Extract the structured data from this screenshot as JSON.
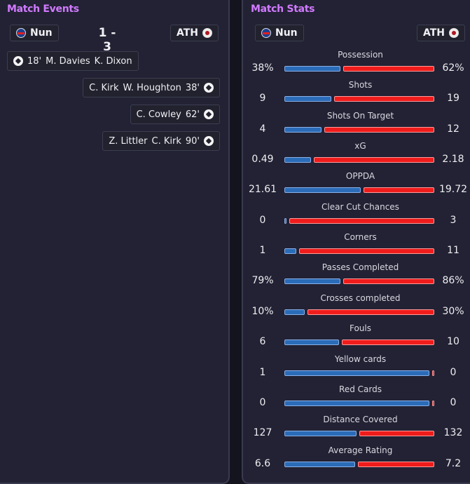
{
  "events_panel": {
    "title": "Match Events",
    "home": {
      "name": "Nun",
      "badge": "nunawading-crest"
    },
    "away": {
      "name": "ATH",
      "badge": "ath-crest"
    },
    "score": "1 - 3",
    "events": [
      {
        "team": "home",
        "minute": "18'",
        "scorer": "M. Davies",
        "assist": "K. Dixon",
        "icon": "ball-icon"
      },
      {
        "team": "away",
        "minute": "38'",
        "scorer": "W. Houghton",
        "assist": "C. Kirk",
        "icon": "ball-icon"
      },
      {
        "team": "away",
        "minute": "62'",
        "scorer": "C. Cowley",
        "assist": "",
        "icon": "ball-icon"
      },
      {
        "team": "away",
        "minute": "90'",
        "scorer": "C. Kirk",
        "assist": "Z. Littler",
        "icon": "ball-icon"
      }
    ]
  },
  "stats_panel": {
    "title": "Match Stats",
    "home": {
      "name": "Nun"
    },
    "away": {
      "name": "ATH"
    },
    "colors": {
      "home": "#2b6cb8",
      "away": "#f01c1c"
    },
    "stats": [
      {
        "label": "Possession",
        "home": "38%",
        "away": "62%",
        "home_share": 0.38
      },
      {
        "label": "Shots",
        "home": "9",
        "away": "19",
        "home_share": 0.32
      },
      {
        "label": "Shots On Target",
        "home": "4",
        "away": "12",
        "home_share": 0.25
      },
      {
        "label": "xG",
        "home": "0.49",
        "away": "2.18",
        "home_share": 0.18
      },
      {
        "label": "OPPDA",
        "home": "21.61",
        "away": "19.72",
        "home_share": 0.52
      },
      {
        "label": "Clear Cut Chances",
        "home": "0",
        "away": "3",
        "home_share": 0.0
      },
      {
        "label": "Corners",
        "home": "1",
        "away": "11",
        "home_share": 0.08
      },
      {
        "label": "Passes Completed",
        "home": "79%",
        "away": "86%",
        "home_share": 0.38
      },
      {
        "label": "Crosses completed",
        "home": "10%",
        "away": "30%",
        "home_share": 0.14
      },
      {
        "label": "Fouls",
        "home": "6",
        "away": "10",
        "home_share": 0.37
      },
      {
        "label": "Yellow cards",
        "home": "1",
        "away": "0",
        "home_share": 1.0
      },
      {
        "label": "Red Cards",
        "home": "0",
        "away": "0",
        "home_share": 1.0
      },
      {
        "label": "Distance Covered",
        "home": "127",
        "away": "132",
        "home_share": 0.49
      },
      {
        "label": "Average Rating",
        "home": "6.6",
        "away": "7.2",
        "home_share": 0.48
      }
    ]
  }
}
